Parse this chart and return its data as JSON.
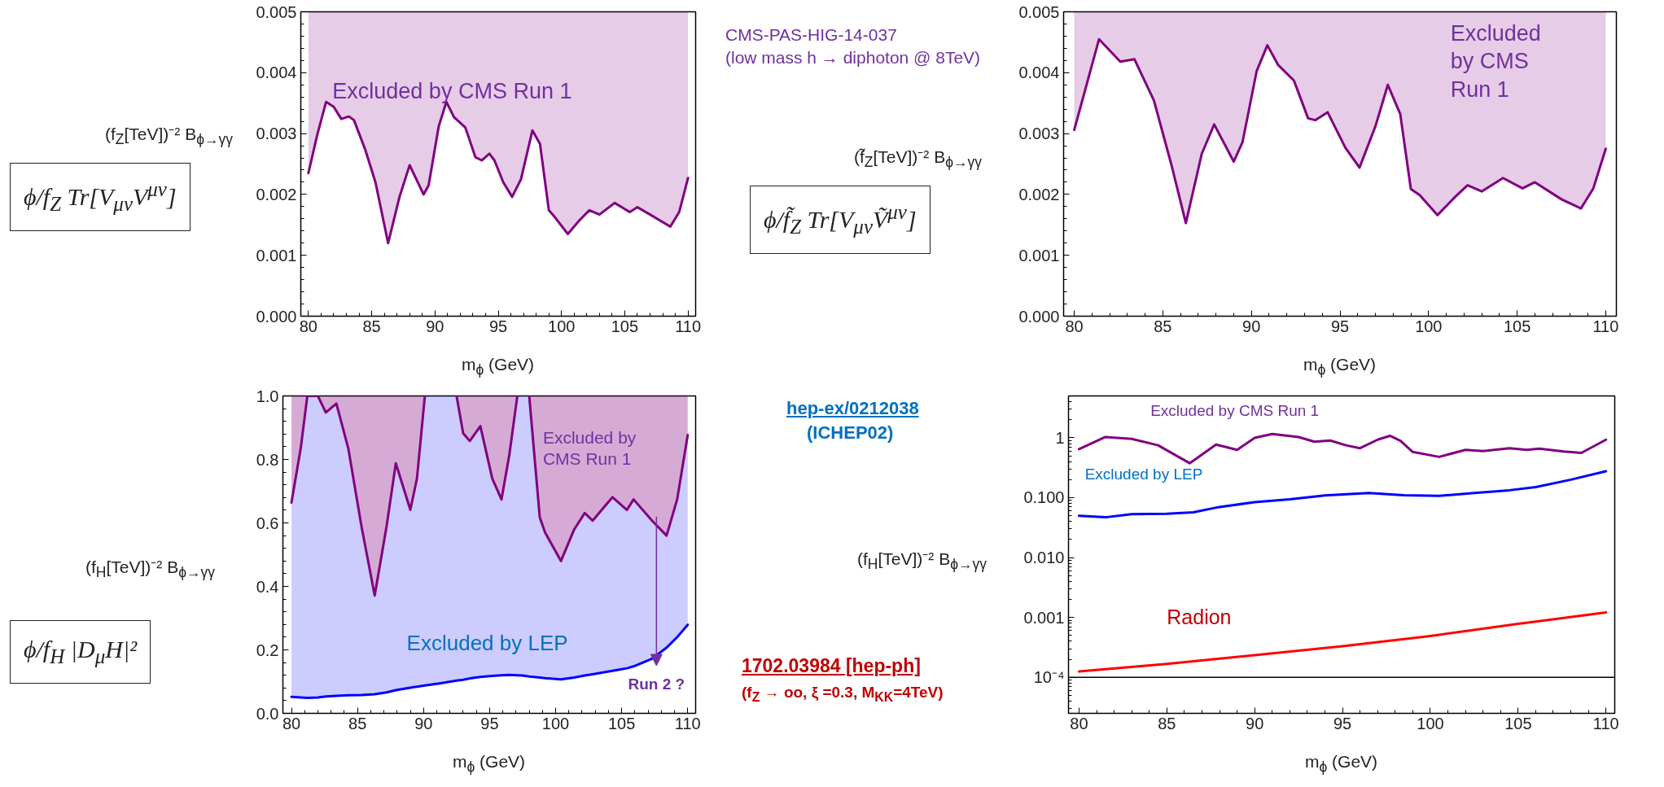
{
  "chart_data": [
    {
      "type": "line",
      "xlabel": "m$_{ϕ}$ (GeV)",
      "ylabel": "(f$_{Z}$[TeV])⁻² B$_{ϕ→γγ}$",
      "xlim": [
        79.4,
        110.6
      ],
      "ylim": [
        0,
        0.005
      ],
      "xticks": [
        80,
        85,
        90,
        95,
        100,
        105,
        110
      ],
      "yticks": [
        {
          "value": 0,
          "label": "0.000"
        },
        {
          "value": 0.001,
          "label": "0.001"
        },
        {
          "value": 0.002,
          "label": "0.002"
        },
        {
          "value": 0.003,
          "label": "0.003"
        },
        {
          "value": 0.004,
          "label": "0.004"
        },
        {
          "value": 0.005,
          "label": "0.005"
        }
      ],
      "annotations": [
        "Excluded by CMS Run 1",
        "CMS-PAS-HIG-14-037",
        "(low mass h → diphoton @ 8TeV)",
        "ϕ/f$_{Z}$ Tr[V$_{μν}$V$^{μν}$]"
      ],
      "x": [
        80,
        80.7,
        81.4,
        82,
        82.6,
        83.2,
        83.6,
        84.5,
        85.3,
        86.3,
        87.2,
        88,
        89.1,
        89.5,
        90.3,
        90.9,
        91.5,
        92.4,
        93.2,
        93.7,
        94.3,
        94.7,
        95.4,
        96.1,
        96.8,
        97.7,
        98.3,
        99,
        99.5,
        100.5,
        101.4,
        102.2,
        103,
        104.2,
        105.4,
        106,
        107,
        108.6,
        109.3,
        110
      ],
      "series": [
        {
          "color": "#800080",
          "values": [
            0.00235,
            0.00298,
            0.00352,
            0.00344,
            0.00324,
            0.00328,
            0.00322,
            0.00273,
            0.0022,
            0.0012,
            0.00196,
            0.00248,
            0.002,
            0.00215,
            0.00312,
            0.00352,
            0.00327,
            0.0031,
            0.00261,
            0.00256,
            0.00267,
            0.00256,
            0.0022,
            0.00196,
            0.00225,
            0.00305,
            0.00283,
            0.00174,
            0.00162,
            0.00135,
            0.00157,
            0.00174,
            0.00167,
            0.00186,
            0.00171,
            0.00179,
            0.00167,
            0.00147,
            0.00171,
            0.00227
          ],
          "lower": [
            0.00235,
            0.00298,
            0.00352,
            0.00344,
            0.00324,
            0.00328,
            0.00322,
            0.00273,
            0.0022,
            0.0012,
            0.00196,
            0.00248,
            0.002,
            0.00215,
            0.00312,
            0.00352,
            0.00327,
            0.0031,
            0.00261,
            0.00256,
            0.00267,
            0.00256,
            0.0022,
            0.00196,
            0.00225,
            0.00305,
            0.00283,
            0.00174,
            0.00162,
            0.00135,
            0.00157,
            0.00174,
            0.00167,
            0.00186,
            0.00171,
            0.00179,
            0.00167,
            0.00147,
            0.00171,
            0.00227
          ],
          "upper": [
            0.005,
            0.005,
            0.005,
            0.005,
            0.005,
            0.005,
            0.005,
            0.005,
            0.005,
            0.005,
            0.005,
            0.005,
            0.005,
            0.005,
            0.005,
            0.005,
            0.005,
            0.005,
            0.005,
            0.005,
            0.005,
            0.005,
            0.005,
            0.005,
            0.005,
            0.005,
            0.005,
            0.005,
            0.005,
            0.005,
            0.005,
            0.005,
            0.005,
            0.005,
            0.005,
            0.005,
            0.005,
            0.005,
            0.005,
            0.005
          ]
        }
      ]
    },
    {
      "type": "line",
      "xlabel": "m$_{ϕ}$ (GeV)",
      "ylabel": "(f̃$_{Z}$[TeV])⁻² B$_{ϕ→γγ}$",
      "xlim": [
        79.4,
        110.6
      ],
      "ylim": [
        0,
        0.005
      ],
      "xticks": [
        80,
        85,
        90,
        95,
        100,
        105,
        110
      ],
      "yticks": [
        {
          "value": 0,
          "label": "0.000"
        },
        {
          "value": 0.001,
          "label": "0.001"
        },
        {
          "value": 0.002,
          "label": "0.002"
        },
        {
          "value": 0.003,
          "label": "0.003"
        },
        {
          "value": 0.004,
          "label": "0.004"
        },
        {
          "value": 0.005,
          "label": "0.005"
        }
      ],
      "annotations": [
        "Excluded by CMS Run 1",
        "ϕ/f̃$_{Z}$ Tr[V$_{μν}$Ṽ$^{μν}$]"
      ],
      "x": [
        80,
        81.4,
        82.6,
        83.4,
        84.5,
        85.5,
        86.3,
        87.2,
        87.9,
        89,
        89.5,
        90.3,
        90.9,
        91.5,
        92.4,
        93.2,
        93.6,
        94.3,
        95.3,
        96.1,
        97,
        97.7,
        98.4,
        99,
        99.5,
        100.5,
        101.5,
        102.2,
        103,
        104.2,
        105.3,
        106,
        107.5,
        108.6,
        109.3,
        110
      ],
      "series": [
        {
          "color": "#800080",
          "values": [
            0.00306,
            0.00455,
            0.00418,
            0.00422,
            0.00354,
            0.00247,
            0.00153,
            0.00267,
            0.00315,
            0.00254,
            0.00286,
            0.00403,
            0.00445,
            0.00413,
            0.00387,
            0.00325,
            0.00322,
            0.00335,
            0.00277,
            0.00244,
            0.00312,
            0.0038,
            0.00332,
            0.00209,
            0.00199,
            0.00166,
            0.00196,
            0.00215,
            0.00205,
            0.00227,
            0.0021,
            0.0022,
            0.00192,
            0.00177,
            0.0021,
            0.00275
          ],
          "lower": [
            0.00306,
            0.00455,
            0.00418,
            0.00422,
            0.00354,
            0.00247,
            0.00153,
            0.00267,
            0.00315,
            0.00254,
            0.00286,
            0.00403,
            0.00445,
            0.00413,
            0.00387,
            0.00325,
            0.00322,
            0.00335,
            0.00277,
            0.00244,
            0.00312,
            0.0038,
            0.00332,
            0.00209,
            0.00199,
            0.00166,
            0.00196,
            0.00215,
            0.00205,
            0.00227,
            0.0021,
            0.0022,
            0.00192,
            0.00177,
            0.0021,
            0.00275
          ],
          "upper": [
            0.005,
            0.005,
            0.005,
            0.005,
            0.005,
            0.005,
            0.005,
            0.005,
            0.005,
            0.005,
            0.005,
            0.005,
            0.005,
            0.005,
            0.005,
            0.005,
            0.005,
            0.005,
            0.005,
            0.005,
            0.005,
            0.005,
            0.005,
            0.005,
            0.005,
            0.005,
            0.005,
            0.005,
            0.005,
            0.005,
            0.005,
            0.005,
            0.005,
            0.005,
            0.005,
            0.005
          ]
        }
      ]
    },
    {
      "type": "line",
      "xlabel": "m$_{ϕ}$ (GeV)",
      "ylabel": "(f$_{H}$[TeV])⁻² B$_{ϕ→γγ}$",
      "xlim": [
        79.35,
        110.6
      ],
      "ylim": [
        0,
        1
      ],
      "xticks": [
        80,
        85,
        90,
        95,
        100,
        105,
        110
      ],
      "yticks": [
        {
          "value": 0,
          "label": "0.0"
        },
        {
          "value": 0.2,
          "label": "0.2"
        },
        {
          "value": 0.4,
          "label": "0.4"
        },
        {
          "value": 0.6,
          "label": "0.6"
        },
        {
          "value": 0.8,
          "label": "0.8"
        },
        {
          "value": 1,
          "label": "1.0"
        }
      ],
      "annotations": [
        "Excluded by CMS Run 1",
        "Excluded by LEP",
        "Run 2 ?",
        "hep-ex/0212038",
        "(ICHEP02)",
        "ϕ/f$_{H}$ |D$_{μ}$H|²"
      ],
      "series": [
        {
          "color": "#0000ff",
          "x": [
            80,
            80.7,
            81.2,
            82,
            82.6,
            83.4,
            84.3,
            85.3,
            86.3,
            87.2,
            87.9,
            89,
            89.5,
            90.1,
            91.3,
            92.5,
            93,
            93.5,
            94.3,
            95.2,
            95.9,
            96.5,
            97.1,
            97.5,
            98,
            98.8,
            99.2,
            100.4,
            101.4,
            102.2,
            102.8,
            104.3,
            105.4,
            105.9,
            107.3,
            108.4,
            109.2,
            110
          ],
          "values": [
            0.052,
            0.05,
            0.049,
            0.05,
            0.053,
            0.055,
            0.057,
            0.058,
            0.06,
            0.066,
            0.073,
            0.081,
            0.084,
            0.088,
            0.095,
            0.103,
            0.106,
            0.11,
            0.115,
            0.118,
            0.12,
            0.121,
            0.12,
            0.119,
            0.116,
            0.113,
            0.111,
            0.107,
            0.113,
            0.119,
            0.123,
            0.134,
            0.142,
            0.148,
            0.172,
            0.207,
            0.24,
            0.279
          ],
          "lower": [
            0.052,
            0.05,
            0.049,
            0.05,
            0.053,
            0.055,
            0.057,
            0.058,
            0.06,
            0.066,
            0.073,
            0.081,
            0.084,
            0.088,
            0.095,
            0.103,
            0.106,
            0.11,
            0.115,
            0.118,
            0.12,
            0.121,
            0.12,
            0.119,
            0.116,
            0.113,
            0.111,
            0.107,
            0.113,
            0.119,
            0.123,
            0.134,
            0.142,
            0.148,
            0.172,
            0.207,
            0.24,
            0.279
          ],
          "upper": [
            0.664,
            0.835,
            1.0,
            1.0,
            0.948,
            0.976,
            0.835,
            0.589,
            0.371,
            0.589,
            0.788,
            0.641,
            0.74,
            1.0,
            1,
            1.0,
            0.882,
            0.858,
            0.905,
            0.74,
            0.674,
            0.816,
            1.0,
            1,
            1.0,
            0.617,
            0.57,
            0.48,
            0.579,
            0.631,
            0.607,
            0.681,
            0.641,
            0.674,
            0.607,
            0.56,
            0.674,
            0.877
          ]
        },
        {
          "color": "#800080",
          "x": [
            80,
            80.7,
            81.2,
            82,
            82.6,
            83.4,
            84.3,
            85.3,
            86.3,
            87.2,
            87.9,
            89,
            89.5,
            90.1,
            91.3,
            92.5,
            93,
            93.5,
            94.3,
            95.2,
            95.9,
            96.5,
            97.1,
            97.5,
            98,
            98.8,
            99.2,
            100.4,
            101.4,
            102.2,
            102.8,
            104.3,
            105.4,
            105.9,
            107.3,
            108.4,
            109.2,
            110
          ],
          "values": [
            0.664,
            0.835,
            1.0,
            1.0,
            0.948,
            0.976,
            0.835,
            0.589,
            0.371,
            0.589,
            0.788,
            0.641,
            0.74,
            1.0,
            null,
            1.0,
            0.882,
            0.858,
            0.905,
            0.74,
            0.674,
            0.816,
            1.0,
            null,
            1.0,
            0.617,
            0.57,
            0.48,
            0.579,
            0.631,
            0.607,
            0.681,
            0.641,
            0.674,
            0.607,
            0.56,
            0.674,
            0.877
          ],
          "lower": [
            0.664,
            0.835,
            1.0,
            1.0,
            0.948,
            0.976,
            0.835,
            0.589,
            0.371,
            0.589,
            0.788,
            0.641,
            0.74,
            1.0,
            null,
            1.0,
            0.882,
            0.858,
            0.905,
            0.74,
            0.674,
            0.816,
            1.0,
            null,
            1.0,
            0.617,
            0.57,
            0.48,
            0.579,
            0.631,
            0.607,
            0.681,
            0.641,
            0.674,
            0.607,
            0.56,
            0.674,
            0.877
          ],
          "upper": [
            1,
            1,
            1,
            1,
            1,
            1,
            1,
            1,
            1,
            1,
            1,
            1,
            1,
            1,
            null,
            1,
            1,
            1,
            1,
            1,
            1,
            1,
            1,
            null,
            1,
            1,
            1,
            1,
            1,
            1,
            1,
            1,
            1,
            1,
            1,
            1,
            1,
            1
          ]
        }
      ]
    },
    {
      "type": "line",
      "log": true,
      "xlabel": "m$_{ϕ}$ (GeV)",
      "ylabel": "(f$_{H}$[TeV])⁻² B$_{ϕ→γγ}$",
      "xlim": [
        79.4,
        110.5
      ],
      "ylim": [
        2.5e-05,
        5
      ],
      "xticks": [
        80,
        85,
        90,
        95,
        100,
        105,
        110
      ],
      "yticks": [
        {
          "value": 0.0001,
          "label": "10⁻⁴"
        },
        0.001,
        {
          "value": 0.01,
          "label": "0.010"
        },
        {
          "value": 0.1,
          "label": "0.100"
        },
        1
      ],
      "ref_lines": [
        {
          "axis": "y",
          "value": 0.0001,
          "color": "#000000"
        }
      ],
      "annotations": [
        "Excluded by CMS Run 1",
        "Excluded by LEP",
        "Radion",
        "1702.03984 [hep-ph]",
        "(f$_{Z}$ → oo, ξ =0.3, M$_{KK}$=4TeV)"
      ],
      "series": [
        {
          "color": "#800080",
          "x": [
            80,
            81.5,
            83,
            84.5,
            86.3,
            87.8,
            89,
            90,
            91,
            92.5,
            93.4,
            94.3,
            95.2,
            96,
            97,
            97.7,
            98.3,
            99,
            100.5,
            102,
            103,
            104.5,
            105.5,
            106.2,
            107.6,
            108.6,
            110
          ],
          "values": [
            0.645,
            1.03,
            0.96,
            0.75,
            0.376,
            0.77,
            0.63,
            1.0,
            1.16,
            1.03,
            0.86,
            0.9,
            0.75,
            0.67,
            0.93,
            1.08,
            0.89,
            0.58,
            0.48,
            0.63,
            0.6,
            0.67,
            0.63,
            0.66,
            0.59,
            0.56,
            0.93
          ]
        },
        {
          "color": "#0000ff",
          "x": [
            80,
            81.5,
            83,
            85,
            86.5,
            88,
            90,
            92,
            94,
            96.5,
            98.5,
            100.5,
            102.5,
            104.5,
            106,
            108,
            110
          ],
          "values": [
            0.05,
            0.047,
            0.053,
            0.054,
            0.057,
            0.07,
            0.084,
            0.094,
            0.109,
            0.12,
            0.11,
            0.107,
            0.12,
            0.133,
            0.15,
            0.2,
            0.276
          ]
        },
        {
          "color": "#ff0000",
          "x": [
            80,
            85,
            90,
            95,
            100,
            105,
            110
          ],
          "values": [
            0.000125,
            0.000167,
            0.000235,
            0.00033,
            0.00049,
            0.00078,
            0.00121
          ]
        }
      ]
    }
  ]
}
